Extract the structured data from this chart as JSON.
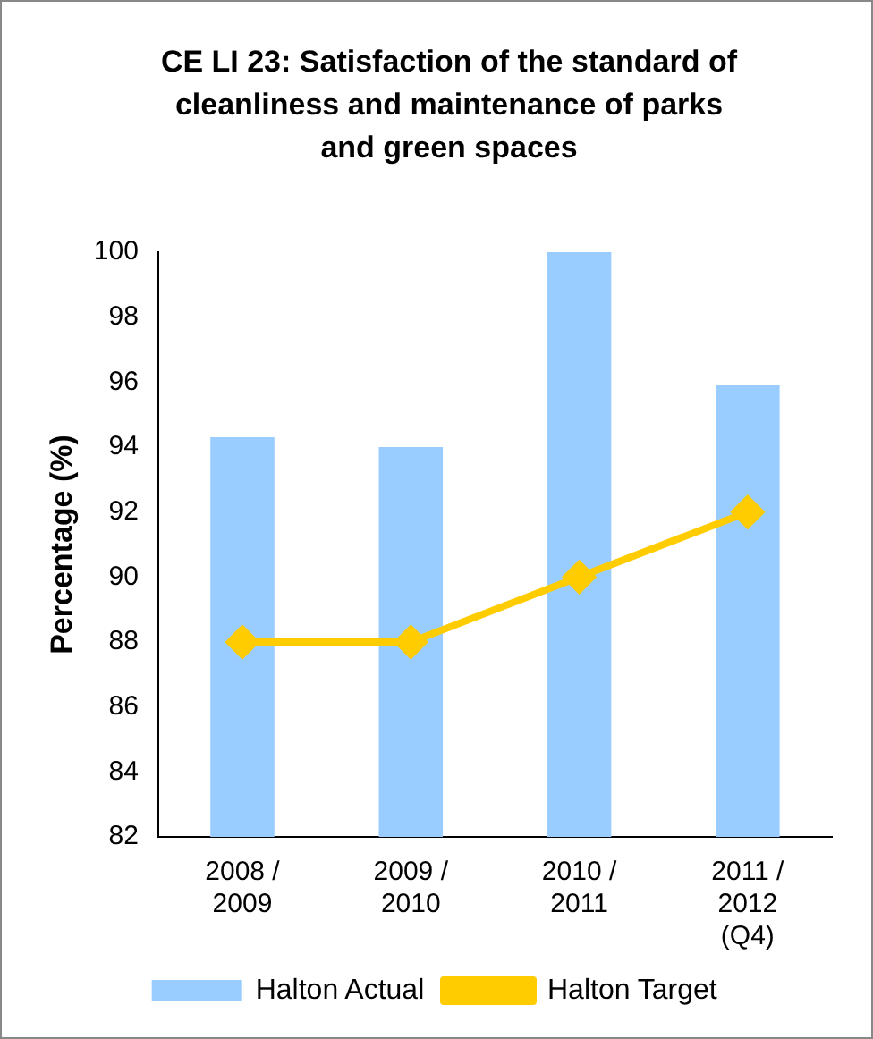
{
  "chart_data": {
    "type": "bar",
    "title": "CE LI 23: Satisfaction of the standard of cleanliness and maintenance of parks and green spaces",
    "ylabel": "Percentage (%)",
    "categories": [
      "2008 /\n2009",
      "2009 /\n2010",
      "2010 /\n2011",
      "2011 /\n2012\n(Q4)"
    ],
    "series": [
      {
        "name": "Halton Actual",
        "color": "#99ccff",
        "values": [
          94.3,
          94.0,
          100,
          95.9
        ]
      },
      {
        "name": "Halton Target",
        "type": "line",
        "color": "#ffcc00",
        "values": [
          88,
          88,
          90,
          92
        ]
      }
    ],
    "ylim": [
      82,
      100
    ],
    "yticks": [
      82,
      84,
      86,
      88,
      90,
      92,
      94,
      96,
      98,
      100
    ],
    "grid": false,
    "legend": "bottom",
    "marker": "diamond"
  }
}
